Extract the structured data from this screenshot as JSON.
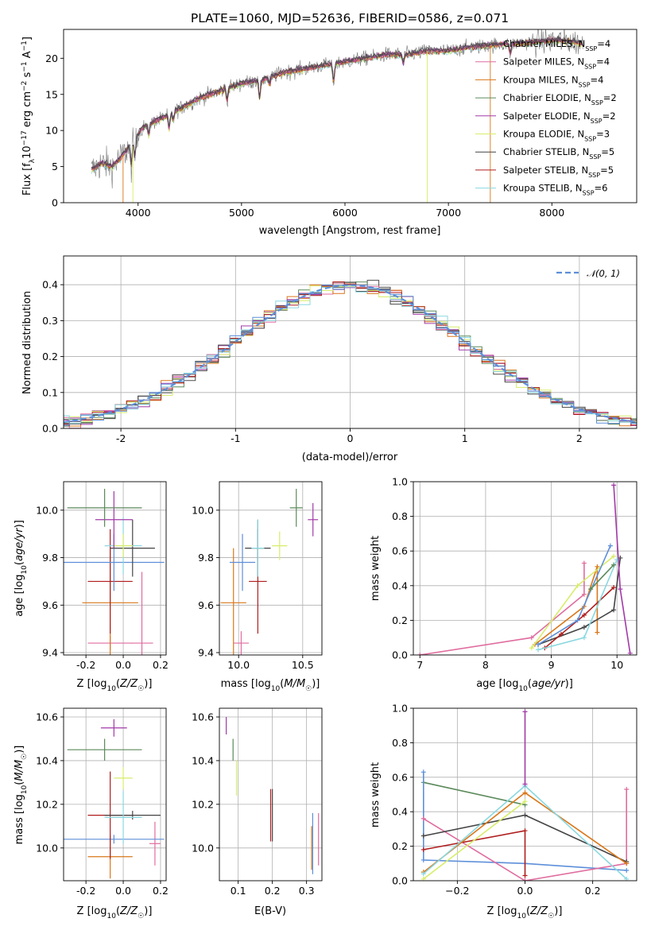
{
  "figure_title": "PLATE=1060, MJD=52636, FIBERID=0586, z=0.071",
  "colors": {
    "c0": "#4c4c4c",
    "c1": "#e06c9f",
    "c2": "#d9771a",
    "c3": "#5b8a5b",
    "c4": "#a23aa8",
    "c5": "#d7ed6a",
    "c6": "#444444",
    "c7": "#b01e1e",
    "c8": "#8ad8e0",
    "norm": "#5d8fd9"
  },
  "chart_data": [
    {
      "type": "line",
      "id": "spectrum",
      "xlabel": "wavelength [Angstrom, rest frame]",
      "ylabel": "Flux [f_λ 10^-17 erg cm^-2 s^-1 A^-1]",
      "xlim": [
        3280,
        8820
      ],
      "ylim": [
        0,
        24
      ],
      "xticks": [
        4000,
        5000,
        6000,
        7000,
        8000
      ],
      "yticks": [
        0,
        5,
        10,
        15,
        20
      ],
      "continuum_x": [
        3550,
        3650,
        3750,
        3850,
        3950,
        4050,
        4200,
        4400,
        4600,
        4800,
        5000,
        5200,
        5400,
        5600,
        5800,
        6000,
        6200,
        6400,
        6600,
        6800,
        7000,
        7200,
        7400,
        7600,
        7800,
        8000,
        8200,
        8300
      ],
      "continuum_y": [
        4.5,
        5.5,
        5.0,
        6.5,
        8.5,
        10.5,
        11.5,
        13.0,
        14.5,
        15.5,
        16.5,
        17.0,
        18.0,
        18.5,
        19.0,
        19.5,
        20.0,
        20.5,
        20.5,
        21.0,
        21.0,
        21.5,
        21.8,
        22.0,
        22.2,
        22.5,
        22.3,
        22.0
      ],
      "legend_position": "right",
      "legend": [
        {
          "label": "Chabrier MILES, N",
          "sub": "SSP",
          "suffix": "=4",
          "color_key": "c0"
        },
        {
          "label": "Salpeter MILES, N",
          "sub": "SSP",
          "suffix": "=4",
          "color_key": "c1"
        },
        {
          "label": "Kroupa MILES, N",
          "sub": "SSP",
          "suffix": "=4",
          "color_key": "c2"
        },
        {
          "label": "Chabrier ELODIE, N",
          "sub": "SSP",
          "suffix": "=2",
          "color_key": "c3"
        },
        {
          "label": "Salpeter ELODIE, N",
          "sub": "SSP",
          "suffix": "=2",
          "color_key": "c4"
        },
        {
          "label": "Kroupa ELODIE, N",
          "sub": "SSP",
          "suffix": "=3",
          "color_key": "c5"
        },
        {
          "label": "Chabrier STELIB, N",
          "sub": "SSP",
          "suffix": "=5",
          "color_key": "c6"
        },
        {
          "label": "Salpeter STELIB, N",
          "sub": "SSP",
          "suffix": "=5",
          "color_key": "c7"
        },
        {
          "label": "Kroupa STELIB, N",
          "sub": "SSP",
          "suffix": "=6",
          "color_key": "c8"
        }
      ]
    },
    {
      "type": "line",
      "id": "residuals",
      "xlabel": "(data-model)/error",
      "ylabel": "Normed distribution",
      "xlim": [
        -2.5,
        2.5
      ],
      "ylim": [
        0,
        0.48
      ],
      "xticks": [
        -2,
        -1,
        0,
        1,
        2
      ],
      "yticks": [
        0.0,
        0.1,
        0.2,
        0.3,
        0.4
      ],
      "legend": "𝒩(0, 1)",
      "legend_position": "top-right",
      "bin_width": 0.1,
      "grid": true
    },
    {
      "type": "scatter",
      "id": "age_vs_z",
      "xlabel": "Z [log₁₀(Z/Z☉)]",
      "ylabel": "age [log₁₀(age/yr)]",
      "xlim": [
        -0.32,
        0.23
      ],
      "ylim": [
        9.39,
        10.12
      ],
      "xticks": [
        -0.2,
        0.0,
        0.2
      ],
      "yticks": [
        9.4,
        9.6,
        9.8,
        10.0
      ],
      "points": [
        {
          "x": -0.07,
          "y": 9.44,
          "xerr": 0.12,
          "yerr": 0.03,
          "color_key": "c1"
        },
        {
          "x": 0.1,
          "y": 9.44,
          "xerr": 0.06,
          "yerr": 0.3,
          "color_key": "c1"
        },
        {
          "x": -0.07,
          "y": 9.61,
          "xerr": 0.15,
          "yerr": 0.23,
          "color_key": "c2"
        },
        {
          "x": -0.07,
          "y": 9.7,
          "xerr": 0.12,
          "yerr": 0.22,
          "color_key": "c7"
        },
        {
          "x": -0.05,
          "y": 9.78,
          "xerr": 0.27,
          "yerr": 0.12,
          "color_key": "norm"
        },
        {
          "x": 0.05,
          "y": 9.84,
          "xerr": 0.12,
          "yerr": 0.12,
          "color_key": "c6"
        },
        {
          "x": 0.0,
          "y": 9.85,
          "xerr": 0.1,
          "yerr": 0.12,
          "color_key": "c8"
        },
        {
          "x": 0.0,
          "y": 9.85,
          "xerr": 0.05,
          "yerr": 0.05,
          "color_key": "c5"
        },
        {
          "x": -0.05,
          "y": 9.96,
          "xerr": 0.1,
          "yerr": 0.12,
          "color_key": "c4"
        },
        {
          "x": -0.1,
          "y": 10.01,
          "xerr": 0.2,
          "yerr": 0.08,
          "color_key": "c3"
        }
      ]
    },
    {
      "type": "scatter",
      "id": "age_vs_mass",
      "xlabel": "mass [log₁₀(M/M☉)]",
      "ylabel": "",
      "xlim": [
        9.85,
        10.65
      ],
      "ylim": [
        9.39,
        10.12
      ],
      "xticks": [
        10.0,
        10.5
      ],
      "yticks": [
        9.4,
        9.6,
        9.8,
        10.0
      ],
      "points": [
        {
          "x": 10.02,
          "y": 9.44,
          "xerr": 0.06,
          "yerr": 0.05,
          "color_key": "c1"
        },
        {
          "x": 9.96,
          "y": 9.61,
          "xerr": 0.1,
          "yerr": 0.23,
          "color_key": "c2"
        },
        {
          "x": 10.15,
          "y": 9.7,
          "xerr": 0.07,
          "yerr": 0.22,
          "color_key": "c7"
        },
        {
          "x": 10.03,
          "y": 9.78,
          "xerr": 0.1,
          "yerr": 0.12,
          "color_key": "norm"
        },
        {
          "x": 10.15,
          "y": 9.84,
          "xerr": 0.1,
          "yerr": 0.12,
          "color_key": "c6"
        },
        {
          "x": 10.15,
          "y": 9.84,
          "xerr": 0.05,
          "yerr": 0.12,
          "color_key": "c8"
        },
        {
          "x": 10.32,
          "y": 9.85,
          "xerr": 0.06,
          "yerr": 0.06,
          "color_key": "c5"
        },
        {
          "x": 10.58,
          "y": 9.96,
          "xerr": 0.04,
          "yerr": 0.07,
          "color_key": "c4"
        },
        {
          "x": 10.45,
          "y": 10.01,
          "xerr": 0.05,
          "yerr": 0.08,
          "color_key": "c3"
        }
      ]
    },
    {
      "type": "line",
      "id": "weight_vs_age",
      "xlabel": "age [log₁₀(age/yr)]",
      "ylabel": "mass weight",
      "xlim": [
        6.9,
        10.3
      ],
      "ylim": [
        0,
        1.0
      ],
      "xticks": [
        7,
        8,
        9,
        10
      ],
      "yticks": [
        0.0,
        0.2,
        0.4,
        0.6,
        0.8,
        1.0
      ],
      "series": [
        {
          "color_key": "c1",
          "x": [
            7.0,
            8.7,
            9.5,
            9.5
          ],
          "y": [
            0.0,
            0.1,
            0.35,
            0.53
          ]
        },
        {
          "color_key": "c2",
          "x": [
            8.75,
            9.5,
            9.7,
            9.7
          ],
          "y": [
            0.06,
            0.28,
            0.51,
            0.13
          ]
        },
        {
          "color_key": "c6",
          "x": [
            8.8,
            9.5,
            9.95,
            10.05
          ],
          "y": [
            0.06,
            0.16,
            0.26,
            0.56
          ]
        },
        {
          "color_key": "c7",
          "x": [
            8.9,
            9.15,
            9.5,
            9.95
          ],
          "y": [
            0.04,
            0.12,
            0.23,
            0.39
          ]
        },
        {
          "color_key": "c5",
          "x": [
            8.7,
            9.4,
            9.95
          ],
          "y": [
            0.04,
            0.4,
            0.57
          ]
        },
        {
          "color_key": "norm",
          "x": [
            8.8,
            9.4,
            9.9
          ],
          "y": [
            0.06,
            0.2,
            0.63
          ]
        },
        {
          "color_key": "c8",
          "x": [
            8.8,
            9.5,
            10.0
          ],
          "y": [
            0.03,
            0.1,
            0.55
          ]
        },
        {
          "color_key": "c3",
          "x": [
            9.6,
            9.95
          ],
          "y": [
            0.38,
            0.52
          ]
        },
        {
          "color_key": "c4",
          "x": [
            9.95,
            10.05,
            10.2
          ],
          "y": [
            0.98,
            0.38,
            0.01
          ]
        }
      ]
    },
    {
      "type": "scatter",
      "id": "mass_vs_z",
      "xlabel": "Z [log₁₀(Z/Z☉)]",
      "ylabel": "mass [log₁₀(M/M☉)]",
      "xlim": [
        -0.32,
        0.23
      ],
      "ylim": [
        9.85,
        10.64
      ],
      "xticks": [
        -0.2,
        0.0,
        0.2
      ],
      "yticks": [
        10.0,
        10.2,
        10.4,
        10.6
      ],
      "points": [
        {
          "x": -0.07,
          "y": 9.96,
          "xerr": 0.12,
          "yerr": 0.1,
          "color_key": "c2"
        },
        {
          "x": 0.17,
          "y": 10.02,
          "xerr": 0.03,
          "yerr": 0.1,
          "color_key": "c1"
        },
        {
          "x": -0.05,
          "y": 10.04,
          "xerr": 0.27,
          "yerr": 0.02,
          "color_key": "norm"
        },
        {
          "x": -0.07,
          "y": 10.15,
          "xerr": 0.12,
          "yerr": 0.2,
          "color_key": "c7"
        },
        {
          "x": 0.05,
          "y": 10.15,
          "xerr": 0.15,
          "yerr": 0.02,
          "color_key": "c6"
        },
        {
          "x": 0.0,
          "y": 10.14,
          "xerr": 0.1,
          "yerr": 0.12,
          "color_key": "c8"
        },
        {
          "x": 0.0,
          "y": 10.32,
          "xerr": 0.05,
          "yerr": 0.05,
          "color_key": "c5"
        },
        {
          "x": -0.1,
          "y": 10.45,
          "xerr": 0.2,
          "yerr": 0.05,
          "color_key": "c3"
        },
        {
          "x": -0.05,
          "y": 10.55,
          "xerr": 0.07,
          "yerr": 0.04,
          "color_key": "c4"
        }
      ]
    },
    {
      "type": "scatter",
      "id": "mass_vs_ebv",
      "xlabel": "E(B-V)",
      "ylabel": "",
      "xlim": [
        0.045,
        0.345
      ],
      "ylim": [
        9.85,
        10.64
      ],
      "xticks": [
        0.1,
        0.2,
        0.3
      ],
      "yticks": [
        10.0,
        10.2,
        10.4,
        10.6
      ],
      "points": [
        {
          "x": 0.065,
          "y": 10.56,
          "yerr": 0.04,
          "color_key": "c4"
        },
        {
          "x": 0.085,
          "y": 10.45,
          "yerr": 0.05,
          "color_key": "c3"
        },
        {
          "x": 0.095,
          "y": 10.32,
          "yerr": 0.08,
          "color_key": "c5"
        },
        {
          "x": 0.195,
          "y": 10.15,
          "yerr": 0.12,
          "color_key": "c7"
        },
        {
          "x": 0.2,
          "y": 10.15,
          "yerr": 0.12,
          "color_key": "c6"
        },
        {
          "x": 0.315,
          "y": 10.0,
          "yerr": 0.1,
          "color_key": "c2"
        },
        {
          "x": 0.318,
          "y": 10.02,
          "yerr": 0.14,
          "color_key": "norm"
        },
        {
          "x": 0.335,
          "y": 10.04,
          "yerr": 0.12,
          "color_key": "c1"
        }
      ]
    },
    {
      "type": "line",
      "id": "weight_vs_z",
      "xlabel": "Z [log₁₀(Z/Z☉)]",
      "ylabel": "mass weight",
      "xlim": [
        -0.33,
        0.33
      ],
      "ylim": [
        0,
        1.0
      ],
      "xticks": [
        -0.2,
        0.0,
        0.2
      ],
      "yticks": [
        0.0,
        0.2,
        0.4,
        0.6,
        0.8,
        1.0
      ],
      "series": [
        {
          "color_key": "c3",
          "x": [
            -0.3,
            0.0
          ],
          "y": [
            0.57,
            0.44
          ]
        },
        {
          "color_key": "norm",
          "x": [
            -0.3,
            -0.3,
            0.0,
            0.3
          ],
          "y": [
            0.63,
            0.12,
            0.1,
            0.06
          ]
        },
        {
          "color_key": "c1",
          "x": [
            -0.3,
            0.0,
            0.3,
            0.3
          ],
          "y": [
            0.36,
            0.0,
            0.1,
            0.53
          ]
        },
        {
          "color_key": "c6",
          "x": [
            -0.3,
            0.0,
            0.3
          ],
          "y": [
            0.26,
            0.38,
            0.11
          ]
        },
        {
          "color_key": "c7",
          "x": [
            -0.3,
            0.0,
            0.0
          ],
          "y": [
            0.18,
            0.29,
            0.03
          ]
        },
        {
          "color_key": "c2",
          "x": [
            -0.3,
            0.0,
            0.3
          ],
          "y": [
            0.05,
            0.51,
            0.1
          ]
        },
        {
          "color_key": "c5",
          "x": [
            -0.3,
            0.0
          ],
          "y": [
            0.01,
            0.46
          ]
        },
        {
          "color_key": "c8",
          "x": [
            -0.3,
            0.0,
            0.3
          ],
          "y": [
            0.04,
            0.55,
            0.01
          ]
        },
        {
          "color_key": "c4",
          "x": [
            0.0,
            0.0
          ],
          "y": [
            0.98,
            0.56
          ]
        }
      ]
    }
  ]
}
